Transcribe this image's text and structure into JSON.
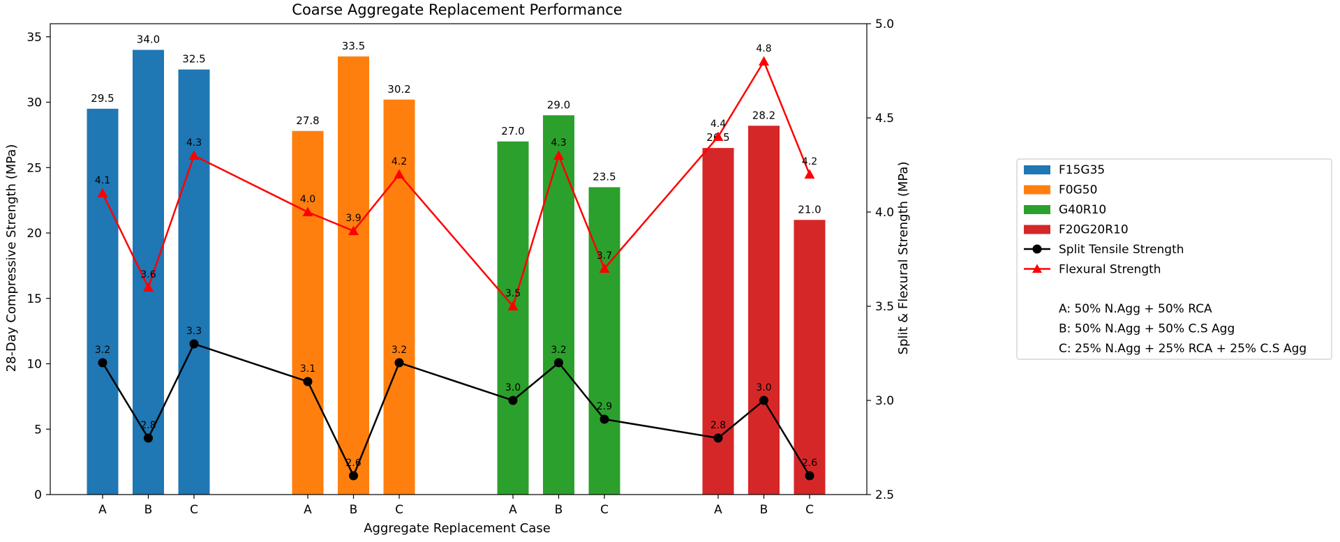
{
  "chart_data": {
    "type": "bar",
    "title": "Coarse Aggregate Replacement Performance",
    "xlabel": "Aggregate Replacement Case",
    "ylabel_left": "28-Day Compressive Strength (MPa)",
    "ylabel_right": "Split & Flexural Strength (MPa)",
    "ylim_left": [
      0,
      36
    ],
    "ylim_right": [
      2.5,
      5.0
    ],
    "yticks_left": [
      0,
      5,
      10,
      15,
      20,
      25,
      30,
      35
    ],
    "yticks_right": [
      2.5,
      3.0,
      3.5,
      4.0,
      4.5,
      5.0
    ],
    "categories": [
      "A",
      "B",
      "C",
      "A",
      "B",
      "C",
      "A",
      "B",
      "C",
      "A",
      "B",
      "C"
    ],
    "groups": [
      {
        "name": "F15G35",
        "color": "#1f77b4",
        "values": [
          29.5,
          34.0,
          32.5
        ]
      },
      {
        "name": "F0G50",
        "color": "#ff7f0e",
        "values": [
          27.8,
          33.5,
          30.2
        ]
      },
      {
        "name": "G40R10",
        "color": "#2ca02c",
        "values": [
          27.0,
          29.0,
          23.5
        ]
      },
      {
        "name": "F20G20R10",
        "color": "#d62728",
        "values": [
          26.5,
          28.2,
          21.0
        ]
      }
    ],
    "bar_labels": [
      "29.5",
      "34.0",
      "32.5",
      "27.8",
      "33.5",
      "30.2",
      "27.0",
      "29.0",
      "23.5",
      "26.5",
      "28.2",
      "21.0"
    ],
    "lines": [
      {
        "name": "Split Tensile Strength",
        "color": "#000000",
        "marker": "circle",
        "values": [
          3.2,
          2.8,
          3.3,
          3.1,
          2.6,
          3.2,
          3.0,
          3.2,
          2.9,
          2.8,
          3.0,
          2.6
        ],
        "labels": [
          "3.2",
          "2.8",
          "3.3",
          "3.1",
          "2.6",
          "3.2",
          "3.0",
          "3.2",
          "2.9",
          "2.8",
          "3.0",
          "2.6"
        ]
      },
      {
        "name": "Flexural Strength",
        "color": "#ff0000",
        "marker": "triangle",
        "values": [
          4.1,
          3.6,
          4.3,
          4.0,
          3.9,
          4.2,
          3.5,
          4.3,
          3.7,
          4.4,
          4.8,
          4.2
        ],
        "labels": [
          "4.1",
          "3.6",
          "4.3",
          "4.0",
          "3.9",
          "4.2",
          "3.5",
          "4.3",
          "3.7",
          "4.4",
          "4.8",
          "4.2"
        ]
      }
    ],
    "legend_placement": "right",
    "legend_notes": [
      "A: 50% N.Agg + 50% RCA",
      "B: 50% N.Agg + 50% C.S Agg",
      "C: 25% N.Agg + 25% RCA + 25% C.S Agg"
    ],
    "grid": false
  }
}
